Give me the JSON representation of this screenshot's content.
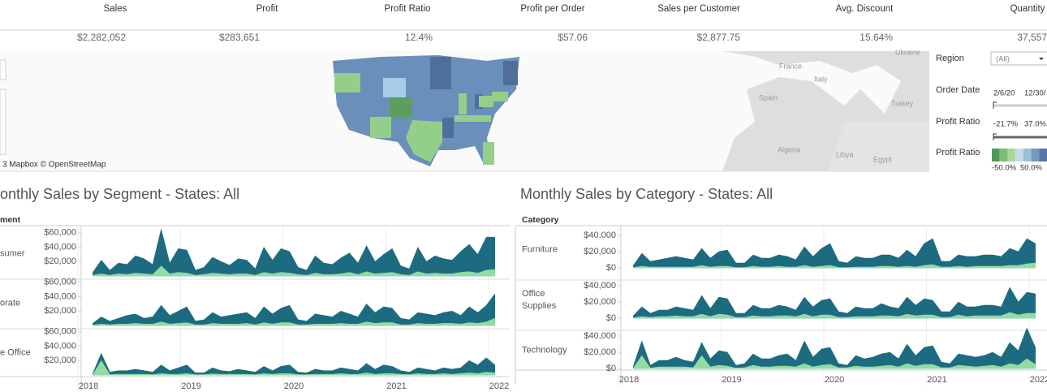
{
  "kpis": [
    {
      "label": "Sales",
      "value": "$2,282,052"
    },
    {
      "label": "Profit",
      "value": "$283,651"
    },
    {
      "label": "Profit Ratio",
      "value": "12.4%"
    },
    {
      "label": "Profit per Order",
      "value": "$57.06"
    },
    {
      "label": "Sales per Customer",
      "value": "$2,877.75"
    },
    {
      "label": "Avg. Discount",
      "value": "15.64%"
    },
    {
      "label": "Quantity",
      "value": "37,557"
    }
  ],
  "map": {
    "attribution": "3 Mapbox © OpenStreetMap",
    "labels": [
      "Ukraine",
      "France",
      "Italy",
      "Spain",
      "Turkey",
      "Algeria",
      "Libya",
      "Egypt"
    ]
  },
  "filters": {
    "region": {
      "label": "Region",
      "value": "(All)"
    },
    "order_date": {
      "label": "Order Date",
      "start": "2/6/20",
      "end": "12/30/"
    },
    "profit_ratio_range": {
      "label": "Profit Ratio",
      "min": "-21.7%",
      "max": "37.0%"
    },
    "profit_ratio_legend": {
      "label": "Profit Ratio",
      "min": "-50.0%",
      "max": "50.0%",
      "colors": [
        "#4e9a5a",
        "#7dbd72",
        "#a9d89b",
        "#c5dbe9",
        "#9dbfd9",
        "#7499c0",
        "#5877a4"
      ]
    }
  },
  "chart_data": [
    {
      "type": "area",
      "title": "onthly Sales by Segment - States: All",
      "header": "ment",
      "categories": [
        null,
        null,
        null,
        null,
        null,
        null,
        null,
        null,
        null,
        null,
        null,
        null,
        null,
        null,
        null,
        null,
        null,
        null,
        null,
        null,
        null,
        null,
        null,
        null,
        null,
        null,
        null,
        null,
        null,
        null,
        null,
        null,
        null,
        null,
        null,
        null,
        null,
        null,
        null,
        null,
        null,
        null,
        null,
        null,
        null,
        null,
        null,
        null
      ],
      "xlim": [
        2018,
        2022
      ],
      "xticks": [
        2018,
        2019,
        2020,
        2021,
        2022
      ],
      "ylim": [
        0,
        62000
      ],
      "yticks": [
        {
          "value": 20000,
          "label": "$20,000"
        },
        {
          "value": 40000,
          "label": "$40,000"
        },
        {
          "value": 60000,
          "label": "$60,000"
        }
      ],
      "panels": [
        {
          "label": [
            "sumer"
          ],
          "series": [
            {
              "color": "#1d6b80",
              "values": [
                5000,
                22000,
                8000,
                18000,
                16000,
                28000,
                24000,
                16000,
                65000,
                18000,
                38000,
                36000,
                8000,
                12000,
                26000,
                20000,
                15000,
                24000,
                22000,
                10000,
                40000,
                22000,
                38000,
                34000,
                12000,
                8000,
                28000,
                18000,
                16000,
                25000,
                32000,
                18000,
                42000,
                20000,
                30000,
                38000,
                14000,
                10000,
                40000,
                20000,
                28000,
                24000,
                22000,
                34000,
                44000,
                30000,
                54000,
                54000
              ]
            },
            {
              "color": "#90dca2",
              "values": [
                1000,
                3000,
                1000,
                3000,
                2000,
                4000,
                3000,
                2000,
                14000,
                3000,
                5000,
                4000,
                1000,
                2000,
                4000,
                3000,
                2000,
                3000,
                3000,
                1000,
                5000,
                3000,
                5000,
                4000,
                2000,
                1000,
                4000,
                2000,
                2000,
                3000,
                5000,
                2000,
                6000,
                3000,
                4000,
                5000,
                2000,
                1000,
                6000,
                3000,
                4000,
                3000,
                3000,
                5000,
                6000,
                4000,
                8000,
                9000
              ]
            }
          ]
        },
        {
          "label": [
            "orate"
          ],
          "series": [
            {
              "color": "#1d6b80",
              "values": [
                3000,
                12000,
                6000,
                10000,
                14000,
                16000,
                10000,
                12000,
                28000,
                14000,
                20000,
                26000,
                6000,
                8000,
                18000,
                12000,
                14000,
                16000,
                18000,
                10000,
                26000,
                16000,
                24000,
                28000,
                8000,
                6000,
                16000,
                14000,
                12000,
                20000,
                16000,
                12000,
                30000,
                18000,
                26000,
                24000,
                10000,
                8000,
                18000,
                16000,
                14000,
                18000,
                20000,
                14000,
                26000,
                18000,
                28000,
                44000
              ]
            },
            {
              "color": "#90dca2",
              "values": [
                500,
                2000,
                1000,
                2000,
                2000,
                3000,
                2000,
                2000,
                5000,
                2000,
                3000,
                4000,
                1000,
                1000,
                3000,
                2000,
                2000,
                2000,
                3000,
                1000,
                4000,
                2000,
                4000,
                4000,
                1000,
                1000,
                2000,
                2000,
                2000,
                3000,
                2000,
                2000,
                5000,
                3000,
                4000,
                4000,
                1000,
                1000,
                3000,
                2000,
                2000,
                3000,
                3000,
                2000,
                4000,
                3000,
                5000,
                10000
              ]
            }
          ]
        },
        {
          "label": [
            "e Office"
          ],
          "series": [
            {
              "color": "#1d6b80",
              "values": [
                2000,
                30000,
                4000,
                6000,
                6000,
                8000,
                6000,
                4000,
                14000,
                6000,
                10000,
                14000,
                3000,
                3000,
                10000,
                6000,
                5000,
                8000,
                6000,
                4000,
                12000,
                6000,
                12000,
                14000,
                4000,
                3000,
                8000,
                6000,
                6000,
                10000,
                8000,
                6000,
                16000,
                8000,
                14000,
                12000,
                6000,
                4000,
                10000,
                8000,
                6000,
                10000,
                8000,
                10000,
                20000,
                14000,
                24000,
                14000
              ]
            },
            {
              "color": "#90dca2",
              "values": [
                500,
                20000,
                500,
                1000,
                1000,
                1000,
                1000,
                500,
                2000,
                1000,
                1000,
                2000,
                500,
                500,
                1500,
                1000,
                1000,
                1000,
                1000,
                500,
                2000,
                1000,
                2000,
                2000,
                500,
                500,
                1000,
                1000,
                1000,
                2000,
                1000,
                1000,
                3000,
                1000,
                2000,
                2000,
                1000,
                500,
                2000,
                1000,
                1000,
                2000,
                1000,
                2000,
                3000,
                2000,
                4000,
                3000
              ]
            }
          ]
        }
      ]
    },
    {
      "type": "area",
      "title": "Monthly Sales by Category - States: All",
      "header": "Category",
      "categories": [
        null,
        null,
        null,
        null,
        null,
        null,
        null,
        null,
        null,
        null,
        null,
        null,
        null,
        null,
        null,
        null,
        null,
        null,
        null,
        null,
        null,
        null,
        null,
        null,
        null,
        null,
        null,
        null,
        null,
        null,
        null,
        null,
        null,
        null,
        null,
        null,
        null,
        null,
        null,
        null,
        null,
        null,
        null,
        null,
        null,
        null,
        null,
        null
      ],
      "xlim": [
        2018,
        2022
      ],
      "xticks": [
        2018,
        2019,
        2020,
        2021,
        2022
      ],
      "ylim": [
        0,
        45000
      ],
      "yticks": [
        {
          "value": 0,
          "label": "$0"
        },
        {
          "value": 20000,
          "label": "$20,000"
        },
        {
          "value": 40000,
          "label": "$40,000"
        }
      ],
      "panels": [
        {
          "label": [
            "Furniture"
          ],
          "series": [
            {
              "color": "#1d6b80",
              "values": [
                3000,
                18000,
                8000,
                10000,
                12000,
                14000,
                12000,
                10000,
                24000,
                12000,
                20000,
                22000,
                6000,
                6000,
                16000,
                12000,
                12000,
                16000,
                14000,
                10000,
                26000,
                14000,
                24000,
                30000,
                8000,
                6000,
                14000,
                12000,
                12000,
                16000,
                16000,
                12000,
                22000,
                14000,
                30000,
                36000,
                8000,
                8000,
                16000,
                14000,
                14000,
                16000,
                16000,
                14000,
                24000,
                20000,
                36000,
                30000
              ]
            },
            {
              "color": "#90dca2",
              "values": [
                500,
                2000,
                1000,
                1000,
                1000,
                1000,
                1000,
                1000,
                3000,
                1000,
                2000,
                2000,
                500,
                500,
                2000,
                1000,
                1000,
                2000,
                1000,
                1000,
                3000,
                1000,
                2000,
                3000,
                500,
                500,
                1000,
                1000,
                1000,
                2000,
                2000,
                1000,
                2000,
                1000,
                3000,
                4000,
                1000,
                1000,
                2000,
                1000,
                2000,
                2000,
                2000,
                2000,
                3000,
                3000,
                5000,
                6000
              ]
            }
          ]
        },
        {
          "label": [
            "Office",
            "Supplies"
          ],
          "series": [
            {
              "color": "#1d6b80",
              "values": [
                3000,
                14000,
                6000,
                10000,
                10000,
                14000,
                12000,
                10000,
                28000,
                12000,
                26000,
                24000,
                6000,
                6000,
                16000,
                12000,
                12000,
                16000,
                14000,
                10000,
                26000,
                14000,
                22000,
                24000,
                8000,
                6000,
                14000,
                12000,
                12000,
                18000,
                14000,
                12000,
                26000,
                16000,
                24000,
                22000,
                8000,
                8000,
                20000,
                14000,
                14000,
                16000,
                16000,
                14000,
                38000,
                20000,
                32000,
                30000
              ]
            },
            {
              "color": "#90dca2",
              "values": [
                500,
                2000,
                1000,
                2000,
                2000,
                3000,
                2000,
                2000,
                5000,
                2000,
                5000,
                4000,
                1000,
                1000,
                3000,
                2000,
                2000,
                3000,
                3000,
                2000,
                5000,
                2000,
                4000,
                4000,
                1000,
                1000,
                2000,
                2000,
                2000,
                3000,
                3000,
                2000,
                5000,
                3000,
                4000,
                4000,
                1000,
                1000,
                4000,
                2000,
                3000,
                3000,
                3000,
                3000,
                7000,
                4000,
                6000,
                6000
              ]
            }
          ]
        },
        {
          "label": [
            "Technology"
          ],
          "series": [
            {
              "color": "#1d6b80",
              "values": [
                3000,
                34000,
                4000,
                10000,
                10000,
                14000,
                10000,
                8000,
                32000,
                12000,
                22000,
                20000,
                4000,
                6000,
                18000,
                12000,
                12000,
                16000,
                18000,
                10000,
                34000,
                14000,
                24000,
                26000,
                6000,
                4000,
                16000,
                12000,
                14000,
                18000,
                20000,
                12000,
                30000,
                16000,
                26000,
                28000,
                8000,
                6000,
                18000,
                16000,
                14000,
                16000,
                20000,
                14000,
                32000,
                22000,
                50000,
                26000
              ]
            },
            {
              "color": "#90dca2",
              "values": [
                500,
                16000,
                500,
                2000,
                2000,
                2000,
                2000,
                1000,
                16000,
                2000,
                4000,
                3000,
                500,
                1000,
                4000,
                2000,
                2000,
                3000,
                3000,
                2000,
                6000,
                2000,
                4000,
                5000,
                1000,
                1000,
                3000,
                2000,
                2000,
                3000,
                4000,
                2000,
                6000,
                3000,
                5000,
                5000,
                1000,
                1000,
                4000,
                3000,
                2000,
                3000,
                4000,
                2000,
                6000,
                4000,
                12000,
                5000
              ]
            }
          ]
        }
      ]
    }
  ]
}
